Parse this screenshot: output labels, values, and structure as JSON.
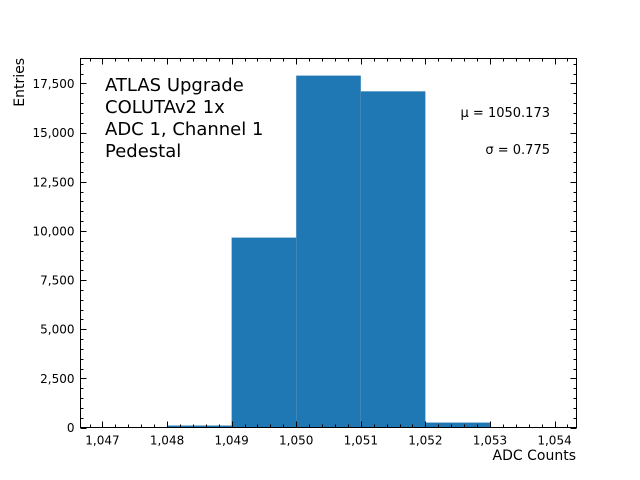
{
  "chart_data": {
    "type": "bar",
    "subtype": "histogram",
    "title": "",
    "xlabel": "ADC Counts",
    "ylabel": "Entries",
    "xlim": [
      1046.66,
      1054.34
    ],
    "ylim": [
      0,
      18770
    ],
    "grid": false,
    "legend": null,
    "bin_edges": [
      1048,
      1049,
      1050,
      1051,
      1052,
      1053
    ],
    "categories": [
      "1048",
      "1049",
      "1050",
      "1051",
      "1052"
    ],
    "values": [
      100,
      9660,
      17900,
      17100,
      250
    ],
    "bar_color": "#1f77b4",
    "x_ticks": [
      1047,
      1048,
      1049,
      1050,
      1051,
      1052,
      1053,
      1054
    ],
    "x_tick_labels": [
      "1,047",
      "1,048",
      "1,049",
      "1,050",
      "1,051",
      "1,052",
      "1,053",
      "1,054"
    ],
    "y_ticks": [
      0,
      2500,
      5000,
      7500,
      10000,
      12500,
      15000,
      17500
    ],
    "y_tick_labels": [
      "0",
      "2,500",
      "5,000",
      "7,500",
      "10,000",
      "12,500",
      "15,000",
      "17,500"
    ],
    "annotations": {
      "text_block": [
        "ATLAS Upgrade",
        "COLUTAv2 1x",
        "ADC 1, Channel 1",
        "Pedestal"
      ],
      "mean": "μ = 1050.173",
      "sigma": "σ = 0.775"
    }
  }
}
